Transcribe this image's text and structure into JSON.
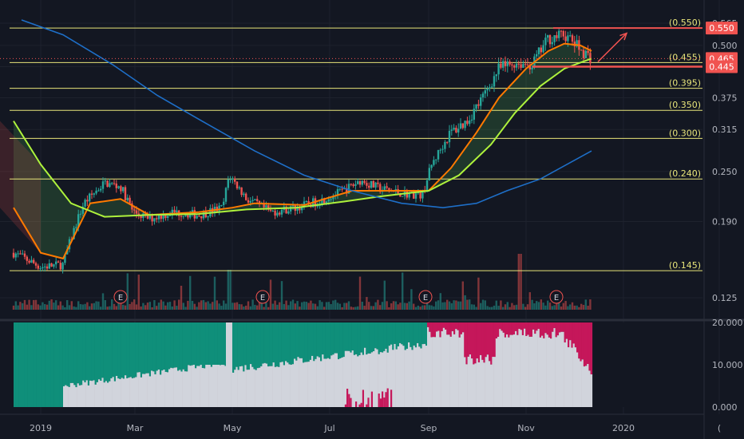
{
  "chart_data": {
    "type": "candlestick",
    "x_axis": {
      "ticks": [
        "2019",
        "Mar",
        "May",
        "Jul",
        "Sep",
        "Nov",
        "2020",
        "("
      ]
    },
    "price_axis": {
      "scale": "log",
      "ticks": [
        "0.565",
        "0.500",
        "0.445",
        "0.375",
        "0.315",
        "0.250",
        "0.190",
        "0.125"
      ],
      "tick_values": [
        0.565,
        0.5,
        0.445,
        0.375,
        0.315,
        0.25,
        0.19,
        0.125
      ],
      "range": [
        0.112,
        0.575
      ]
    },
    "fib_levels": [
      {
        "label": "(0.550)",
        "value": 0.55
      },
      {
        "label": "(0.455)",
        "value": 0.455
      },
      {
        "label": "(0.395)",
        "value": 0.395
      },
      {
        "label": "(0.350)",
        "value": 0.35
      },
      {
        "label": "(0.300)",
        "value": 0.3
      },
      {
        "label": "(0.240)",
        "value": 0.24
      },
      {
        "label": "(0.145)",
        "value": 0.145
      }
    ],
    "badges": [
      {
        "label": "0.550",
        "value": 0.55,
        "color": "#f05350"
      },
      {
        "label": "0.465",
        "value": 0.465,
        "color": "#f05350"
      },
      {
        "label": "0.445",
        "value": 0.445,
        "color": "#f05350"
      }
    ],
    "earnings_markers": {
      "label": "E",
      "dates": [
        "2019-02-20",
        "2019-05-20",
        "2019-08-30",
        "2019-11-20"
      ]
    },
    "price_path": [
      [
        "2018-12-15",
        0.16
      ],
      [
        "2019-01-01",
        0.148
      ],
      [
        "2019-01-15",
        0.15
      ],
      [
        "2019-01-28",
        0.21
      ],
      [
        "2019-02-10",
        0.235
      ],
      [
        "2019-02-20",
        0.23
      ],
      [
        "2019-02-28",
        0.2
      ],
      [
        "2019-03-10",
        0.193
      ],
      [
        "2019-03-25",
        0.2
      ],
      [
        "2019-04-10",
        0.197
      ],
      [
        "2019-04-25",
        0.205
      ],
      [
        "2019-04-29",
        0.245
      ],
      [
        "2019-05-10",
        0.215
      ],
      [
        "2019-05-25",
        0.2
      ],
      [
        "2019-06-10",
        0.205
      ],
      [
        "2019-06-25",
        0.213
      ],
      [
        "2019-07-10",
        0.225
      ],
      [
        "2019-07-20",
        0.238
      ],
      [
        "2019-08-01",
        0.228
      ],
      [
        "2019-08-15",
        0.222
      ],
      [
        "2019-08-28",
        0.22
      ],
      [
        "2019-09-03",
        0.26
      ],
      [
        "2019-09-15",
        0.31
      ],
      [
        "2019-09-25",
        0.33
      ],
      [
        "2019-10-05",
        0.375
      ],
      [
        "2019-10-15",
        0.44
      ],
      [
        "2019-10-25",
        0.455
      ],
      [
        "2019-11-05",
        0.45
      ],
      [
        "2019-11-15",
        0.52
      ],
      [
        "2019-11-25",
        0.53
      ],
      [
        "2019-12-05",
        0.49
      ],
      [
        "2019-12-12",
        0.465
      ]
    ],
    "moving_averages": [
      {
        "color": "#ff7a00",
        "points": [
          [
            "2018-12-15",
            0.205
          ],
          [
            "2019-01-01",
            0.16
          ],
          [
            "2019-01-15",
            0.155
          ],
          [
            "2019-02-01",
            0.21
          ],
          [
            "2019-02-20",
            0.215
          ],
          [
            "2019-03-10",
            0.197
          ],
          [
            "2019-04-10",
            0.2
          ],
          [
            "2019-05-01",
            0.205
          ],
          [
            "2019-05-15",
            0.21
          ],
          [
            "2019-06-15",
            0.208
          ],
          [
            "2019-07-15",
            0.225
          ],
          [
            "2019-08-15",
            0.225
          ],
          [
            "2019-09-01",
            0.225
          ],
          [
            "2019-09-15",
            0.255
          ],
          [
            "2019-10-01",
            0.31
          ],
          [
            "2019-10-15",
            0.375
          ],
          [
            "2019-11-01",
            0.44
          ],
          [
            "2019-11-15",
            0.485
          ],
          [
            "2019-11-25",
            0.505
          ],
          [
            "2019-12-05",
            0.5
          ],
          [
            "2019-12-12",
            0.485
          ]
        ]
      },
      {
        "color": "#aef23c",
        "points": [
          [
            "2018-12-15",
            0.33
          ],
          [
            "2019-01-01",
            0.26
          ],
          [
            "2019-01-20",
            0.21
          ],
          [
            "2019-02-10",
            0.195
          ],
          [
            "2019-03-10",
            0.197
          ],
          [
            "2019-04-10",
            0.198
          ],
          [
            "2019-05-10",
            0.203
          ],
          [
            "2019-06-10",
            0.205
          ],
          [
            "2019-07-10",
            0.212
          ],
          [
            "2019-08-01",
            0.218
          ],
          [
            "2019-09-01",
            0.225
          ],
          [
            "2019-09-20",
            0.245
          ],
          [
            "2019-10-10",
            0.29
          ],
          [
            "2019-10-25",
            0.345
          ],
          [
            "2019-11-10",
            0.4
          ],
          [
            "2019-11-25",
            0.44
          ],
          [
            "2019-12-05",
            0.455
          ],
          [
            "2019-12-12",
            0.465
          ]
        ]
      },
      {
        "color": "#1e6fc8",
        "points": [
          [
            "2018-12-20",
            0.575
          ],
          [
            "2019-01-15",
            0.53
          ],
          [
            "2019-02-15",
            0.45
          ],
          [
            "2019-03-15",
            0.38
          ],
          [
            "2019-04-15",
            0.325
          ],
          [
            "2019-05-15",
            0.28
          ],
          [
            "2019-06-15",
            0.245
          ],
          [
            "2019-07-15",
            0.225
          ],
          [
            "2019-08-15",
            0.21
          ],
          [
            "2019-09-10",
            0.205
          ],
          [
            "2019-10-01",
            0.21
          ],
          [
            "2019-10-20",
            0.225
          ],
          [
            "2019-11-10",
            0.24
          ],
          [
            "2019-12-12",
            0.28
          ]
        ]
      }
    ],
    "arrow": {
      "from": [
        "2019-12-12",
        0.465
      ],
      "to": [
        "2019-12-30",
        0.53
      ],
      "color": "#f05350"
    },
    "oscillator": {
      "ticks": [
        "20.000",
        "10.000",
        "0.000"
      ],
      "range": [
        0,
        20
      ],
      "bands": [
        {
          "start": "2018-12-15",
          "end": "2019-01-15",
          "value": 0,
          "top_color": "#0f8f7a"
        },
        {
          "start": "2019-01-15",
          "end": "2019-04-27",
          "value": 5,
          "top_color": "#0f8f7a"
        },
        {
          "start": "2019-04-27",
          "end": "2019-05-01",
          "value": 20,
          "top_color": "#0f8f7a"
        },
        {
          "start": "2019-05-01",
          "end": "2019-08-31",
          "value": 9,
          "top_color": "#0f8f7a"
        },
        {
          "start": "2019-08-31",
          "end": "2019-12-12",
          "value": 19,
          "top_color": "#c5175a"
        }
      ]
    }
  }
}
